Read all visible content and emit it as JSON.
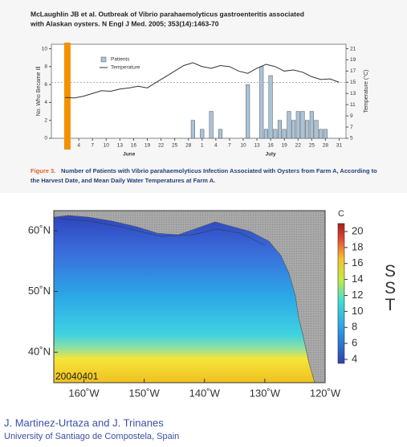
{
  "header": [
    "McLaughlin JB et al. Outbreak of Vibrio parahaemolyticus gastroenteritis associated",
    "with Alaskan oysters. N Engl J Med. 2005; 353(14):1463-70"
  ],
  "caption": {
    "label": "Figure 3.",
    "lines": [
      "Number of Patients with Vibrio parahaemolyticus Infection Associated with Oysters from Farm A, According to",
      "the Harvest Date, and Mean Daily Water Temperatures at Farm A."
    ]
  },
  "credits": [
    "J. Martinez-Urtaza and J. Trinanes",
    "University of Santiago de Compostela, Spain"
  ],
  "chart_data": [
    {
      "type": "bar_line",
      "y_label": "No. Who Became Ill",
      "y2_label": "Temperature (°C)",
      "xlim": [
        -2,
        62.5
      ],
      "ylim": [
        0,
        10.5
      ],
      "y2lim": [
        5,
        21.8
      ],
      "yticks": [
        0,
        2,
        4,
        6,
        8,
        10
      ],
      "y2ticks": [
        5,
        7,
        9,
        11,
        13,
        15,
        17,
        19,
        21
      ],
      "xticks": [
        1,
        4,
        7,
        10,
        13,
        16,
        19,
        22,
        25,
        28,
        {
          "value": 31,
          "label": "1"
        },
        {
          "value": 34,
          "label": "4"
        },
        {
          "value": 37,
          "label": "7"
        },
        {
          "value": 40,
          "label": "10"
        },
        {
          "value": 43,
          "label": "13"
        },
        {
          "value": 46,
          "label": "16"
        },
        {
          "value": 49,
          "label": "19"
        },
        {
          "value": 52,
          "label": "22"
        },
        {
          "value": 55,
          "label": "25"
        },
        {
          "value": 58,
          "label": "28"
        },
        {
          "value": 61,
          "label": "31"
        }
      ],
      "x_groups": [
        {
          "value": 15,
          "label": "June"
        },
        {
          "value": 46,
          "label": "July"
        }
      ],
      "highlight_x": [
        0.8,
        2.2
      ],
      "highlight_color": "#f39200",
      "reference_line_y2": 15,
      "series": [
        {
          "name": "Patients",
          "type": "bar",
          "axis": "y",
          "color": "#a9c3d8",
          "x": [
            29,
            31,
            33,
            35,
            41,
            44,
            45,
            46,
            47,
            48,
            49,
            50,
            51,
            52,
            53,
            54,
            55,
            56,
            57,
            58
          ],
          "values": [
            2,
            1,
            3,
            1,
            6,
            8,
            1,
            7,
            1,
            2,
            1,
            3,
            2,
            3,
            3,
            2,
            3,
            2,
            1,
            1
          ]
        },
        {
          "name": "Temperature",
          "type": "line",
          "axis": "y2",
          "color": "#333333",
          "x": [
            1,
            3,
            5,
            7,
            9,
            11,
            13,
            15,
            17,
            19,
            21,
            23,
            25,
            27,
            29,
            31,
            33,
            35,
            37,
            39,
            41,
            43,
            45,
            47,
            49,
            51,
            53,
            55,
            57,
            59,
            61
          ],
          "values": [
            12.3,
            12.2,
            12.5,
            13,
            13.5,
            13.4,
            13.8,
            14,
            14.3,
            14,
            15,
            16,
            17,
            18,
            18.5,
            17.8,
            17.5,
            18,
            17.8,
            17,
            16.6,
            17.5,
            18.2,
            17.8,
            17,
            17.2,
            16.8,
            16,
            15.5,
            15.6,
            15
          ]
        }
      ]
    },
    {
      "type": "map",
      "date": "20040401",
      "xlim": [
        -165,
        -120
      ],
      "ylim": [
        35,
        63.3
      ],
      "xticks": [
        {
          "value": -160,
          "label": "160˚W"
        },
        {
          "value": -150,
          "label": "150˚W"
        },
        {
          "value": -140,
          "label": "140˚W"
        },
        {
          "value": -130,
          "label": "130˚W"
        },
        {
          "value": -120,
          "label": "120˚W"
        }
      ],
      "yticks": [
        {
          "value": 40,
          "label": "40˚N"
        },
        {
          "value": 50,
          "label": "50˚N"
        },
        {
          "value": 60,
          "label": "60˚N"
        }
      ],
      "colorbar": {
        "unit": "C",
        "label": "SST",
        "clim": [
          3.5,
          21
        ],
        "ticks": [
          4,
          6,
          8,
          10,
          12,
          14,
          16,
          18,
          20
        ]
      }
    }
  ]
}
